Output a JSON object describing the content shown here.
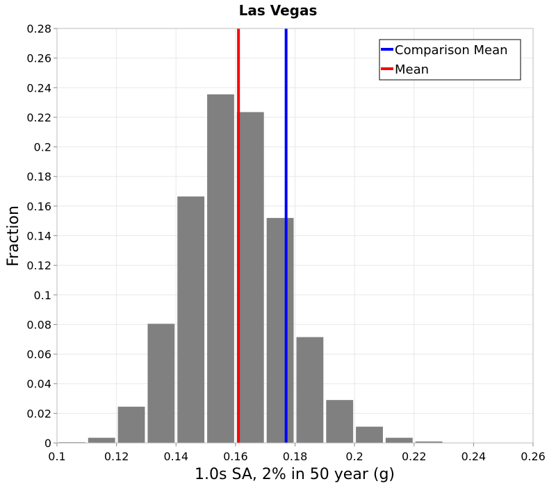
{
  "chart_data": {
    "type": "bar",
    "title": "Las Vegas",
    "xlabel": "1.0s SA, 2% in 50 year (g)",
    "ylabel": "Fraction",
    "xlim": [
      0.1,
      0.26
    ],
    "ylim": [
      0,
      0.28
    ],
    "xticks": [
      "0.1",
      "0.12",
      "0.14",
      "0.16",
      "0.18",
      "0.2",
      "0.22",
      "0.24",
      "0.26"
    ],
    "yticks": [
      "0",
      "0.02",
      "0.04",
      "0.06",
      "0.08",
      "0.1",
      "0.12",
      "0.14",
      "0.16",
      "0.18",
      "0.2",
      "0.22",
      "0.24",
      "0.26",
      "0.28"
    ],
    "bin_width": 0.01,
    "bin_centers": [
      0.105,
      0.115,
      0.125,
      0.135,
      0.145,
      0.155,
      0.165,
      0.175,
      0.185,
      0.195,
      0.205,
      0.215,
      0.225,
      0.235,
      0.245,
      0.255
    ],
    "values": [
      0.0005,
      0.0035,
      0.0245,
      0.0805,
      0.1665,
      0.2355,
      0.2235,
      0.152,
      0.0715,
      0.029,
      0.011,
      0.0035,
      0.001,
      0.0002,
      0.0001,
      0.0001
    ],
    "bar_color": "#808080",
    "vlines": [
      {
        "name": "Comparison Mean",
        "x": 0.177,
        "color": "#0000ff"
      },
      {
        "name": "Mean",
        "x": 0.161,
        "color": "#ff0000"
      }
    ],
    "legend_position": "top-right",
    "grid": true
  }
}
